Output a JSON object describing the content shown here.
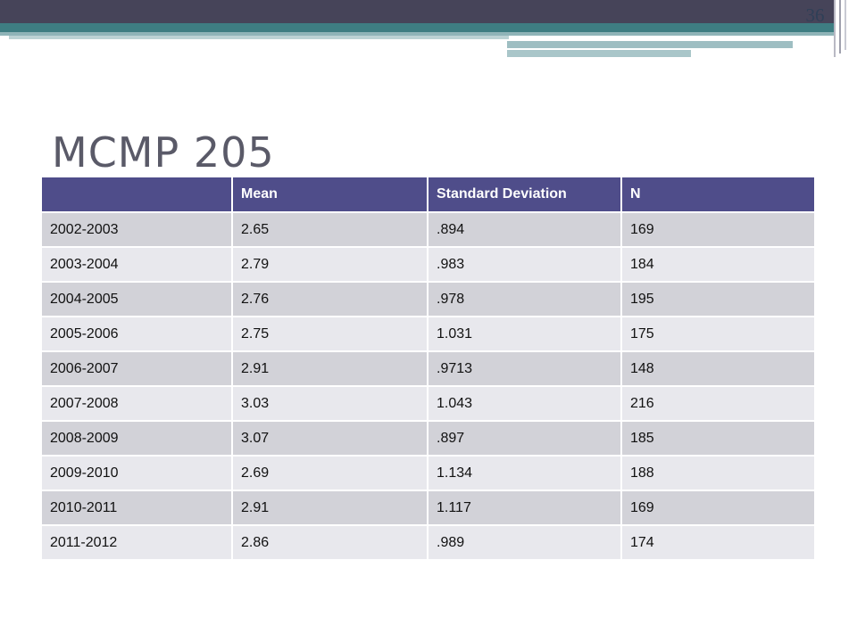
{
  "slide": {
    "number": "36",
    "title": "MCMP 205"
  },
  "table": {
    "headers": [
      "",
      "Mean",
      "Standard Deviation",
      "N"
    ],
    "rows": [
      [
        "2002-2003",
        "2.65",
        ".894",
        "169"
      ],
      [
        "2003-2004",
        "2.79",
        ".983",
        "184"
      ],
      [
        "2004-2005",
        "2.76",
        ".978",
        "195"
      ],
      [
        "2005-2006",
        "2.75",
        "1.031",
        "175"
      ],
      [
        "2006-2007",
        "2.91",
        ".9713",
        "148"
      ],
      [
        "2007-2008",
        "3.03",
        "1.043",
        "216"
      ],
      [
        "2008-2009",
        "3.07",
        ".897",
        "185"
      ],
      [
        "2009-2010",
        "2.69",
        "1.134",
        "188"
      ],
      [
        "2010-2011",
        "2.91",
        "1.117",
        "169"
      ],
      [
        "2011-2012",
        "2.86",
        ".989",
        "174"
      ]
    ]
  },
  "colors": {
    "header_bg": "#4f4d8a",
    "row_odd_bg": "#d2d2d8",
    "row_even_bg": "#e8e8ed",
    "top_bar": "#464459",
    "accent_bar": "#3e7d82"
  }
}
